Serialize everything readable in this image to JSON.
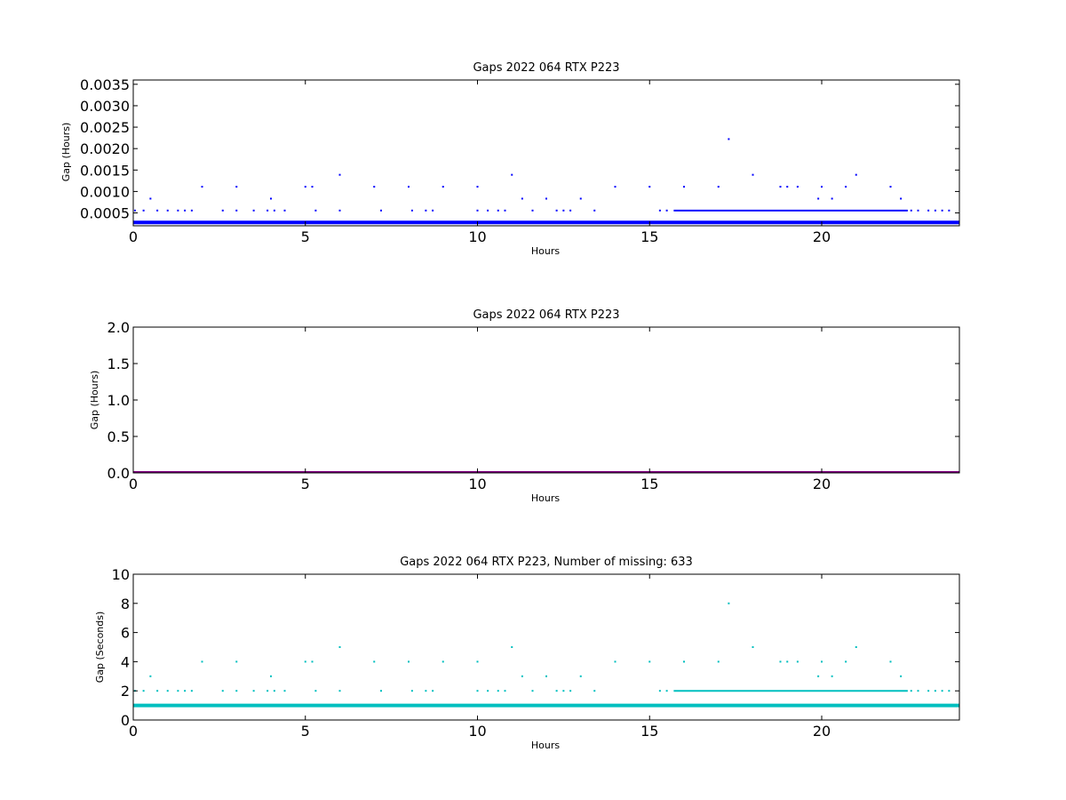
{
  "chart_data": [
    {
      "type": "scatter",
      "title": "Gaps 2022 064 RTX  P223",
      "xlabel": "Hours",
      "ylabel": "Gap (Hours)",
      "xlim": [
        0,
        24
      ],
      "ylim": [
        0.0002,
        0.0036
      ],
      "xticks": [
        0,
        5,
        10,
        15,
        20
      ],
      "yticks": [
        0.0005,
        0.001,
        0.0015,
        0.002,
        0.0025,
        0.003,
        0.0035
      ],
      "ytick_labels": [
        "0.0005",
        "0.0010",
        "0.0015",
        "0.0020",
        "0.0025",
        "0.0030",
        "0.0035"
      ],
      "xtick_labels": [
        "0",
        "5",
        "10",
        "15",
        "20"
      ],
      "color": "#0000ff",
      "baseline": {
        "y": 0.000278,
        "x_range": [
          0,
          24
        ]
      },
      "dense_runs": [
        {
          "y": 0.000556,
          "x_range": [
            15.7,
            22.5
          ]
        }
      ],
      "points": [
        [
          0.05,
          0.000556
        ],
        [
          0.3,
          0.000556
        ],
        [
          0.5,
          0.000833
        ],
        [
          0.7,
          0.000556
        ],
        [
          1.0,
          0.000556
        ],
        [
          1.3,
          0.000556
        ],
        [
          1.5,
          0.000556
        ],
        [
          1.7,
          0.000556
        ],
        [
          2.0,
          0.001111
        ],
        [
          2.6,
          0.000556
        ],
        [
          3.0,
          0.001111
        ],
        [
          3.0,
          0.000556
        ],
        [
          3.5,
          0.000556
        ],
        [
          4.0,
          0.000833
        ],
        [
          3.9,
          0.000556
        ],
        [
          4.1,
          0.000556
        ],
        [
          4.4,
          0.000556
        ],
        [
          5.0,
          0.001111
        ],
        [
          5.2,
          0.001111
        ],
        [
          5.3,
          0.000556
        ],
        [
          6.0,
          0.001389
        ],
        [
          6.0,
          0.000556
        ],
        [
          7.0,
          0.001111
        ],
        [
          7.2,
          0.000556
        ],
        [
          8.0,
          0.001111
        ],
        [
          8.1,
          0.000556
        ],
        [
          8.5,
          0.000556
        ],
        [
          8.7,
          0.000556
        ],
        [
          9.0,
          0.001111
        ],
        [
          10.0,
          0.001111
        ],
        [
          10.0,
          0.000556
        ],
        [
          10.3,
          0.000556
        ],
        [
          10.6,
          0.000556
        ],
        [
          10.8,
          0.000556
        ],
        [
          11.0,
          0.001389
        ],
        [
          11.3,
          0.000833
        ],
        [
          11.6,
          0.000556
        ],
        [
          12.0,
          0.000833
        ],
        [
          12.3,
          0.000556
        ],
        [
          12.5,
          0.000556
        ],
        [
          12.7,
          0.000556
        ],
        [
          13.0,
          0.000833
        ],
        [
          13.4,
          0.000556
        ],
        [
          14.0,
          0.001111
        ],
        [
          15.0,
          0.001111
        ],
        [
          15.3,
          0.000556
        ],
        [
          15.5,
          0.000556
        ],
        [
          16.0,
          0.001111
        ],
        [
          17.0,
          0.001111
        ],
        [
          17.3,
          0.002222
        ],
        [
          18.0,
          0.001389
        ],
        [
          18.8,
          0.001111
        ],
        [
          19.0,
          0.001111
        ],
        [
          19.3,
          0.001111
        ],
        [
          19.9,
          0.000833
        ],
        [
          20.0,
          0.001111
        ],
        [
          20.3,
          0.000833
        ],
        [
          20.7,
          0.001111
        ],
        [
          21.0,
          0.001389
        ],
        [
          22.0,
          0.001111
        ],
        [
          22.3,
          0.000833
        ],
        [
          22.6,
          0.000556
        ],
        [
          22.8,
          0.000556
        ],
        [
          23.1,
          0.000556
        ],
        [
          23.3,
          0.000556
        ],
        [
          23.5,
          0.000556
        ],
        [
          23.7,
          0.000556
        ]
      ]
    },
    {
      "type": "line",
      "title": "Gaps 2022 064 RTX  P223",
      "xlabel": "Hours",
      "ylabel": "Gap (Hours)",
      "xlim": [
        0,
        24
      ],
      "ylim": [
        0,
        2.0
      ],
      "xticks": [
        0,
        5,
        10,
        15,
        20
      ],
      "yticks": [
        0.0,
        0.5,
        1.0,
        1.5,
        2.0
      ],
      "ytick_labels": [
        "0.0",
        "0.5",
        "1.0",
        "1.5",
        "2.0"
      ],
      "xtick_labels": [
        "0",
        "5",
        "10",
        "15",
        "20"
      ],
      "color": "#800080",
      "baseline": {
        "y": 0.0,
        "x_range": [
          0,
          24
        ]
      },
      "dense_runs": [],
      "points": []
    },
    {
      "type": "scatter",
      "title": "Gaps 2022 064 RTX  P223, Number of missing: 633",
      "xlabel": "Hours",
      "ylabel": "Gap (Seconds)",
      "xlim": [
        0,
        24
      ],
      "ylim": [
        0,
        10
      ],
      "xticks": [
        0,
        5,
        10,
        15,
        20
      ],
      "yticks": [
        0,
        2,
        4,
        6,
        8,
        10
      ],
      "ytick_labels": [
        "0",
        "2",
        "4",
        "6",
        "8",
        "10"
      ],
      "xtick_labels": [
        "0",
        "5",
        "10",
        "15",
        "20"
      ],
      "color": "#00bfbf",
      "baseline": {
        "y": 1,
        "x_range": [
          0,
          24
        ]
      },
      "dense_runs": [
        {
          "y": 2,
          "x_range": [
            15.7,
            22.5
          ]
        }
      ],
      "points": [
        [
          0.05,
          2
        ],
        [
          0.3,
          2
        ],
        [
          0.5,
          3
        ],
        [
          0.7,
          2
        ],
        [
          1.0,
          2
        ],
        [
          1.3,
          2
        ],
        [
          1.5,
          2
        ],
        [
          1.7,
          2
        ],
        [
          2.0,
          4
        ],
        [
          2.6,
          2
        ],
        [
          3.0,
          4
        ],
        [
          3.0,
          2
        ],
        [
          3.5,
          2
        ],
        [
          4.0,
          3
        ],
        [
          3.9,
          2
        ],
        [
          4.1,
          2
        ],
        [
          4.4,
          2
        ],
        [
          5.0,
          4
        ],
        [
          5.2,
          4
        ],
        [
          5.3,
          2
        ],
        [
          6.0,
          5
        ],
        [
          6.0,
          2
        ],
        [
          7.0,
          4
        ],
        [
          7.2,
          2
        ],
        [
          8.0,
          4
        ],
        [
          8.1,
          2
        ],
        [
          8.5,
          2
        ],
        [
          8.7,
          2
        ],
        [
          9.0,
          4
        ],
        [
          10.0,
          4
        ],
        [
          10.0,
          2
        ],
        [
          10.3,
          2
        ],
        [
          10.6,
          2
        ],
        [
          10.8,
          2
        ],
        [
          11.0,
          5
        ],
        [
          11.3,
          3
        ],
        [
          11.6,
          2
        ],
        [
          12.0,
          3
        ],
        [
          12.3,
          2
        ],
        [
          12.5,
          2
        ],
        [
          12.7,
          2
        ],
        [
          13.0,
          3
        ],
        [
          13.4,
          2
        ],
        [
          14.0,
          4
        ],
        [
          15.0,
          4
        ],
        [
          15.3,
          2
        ],
        [
          15.5,
          2
        ],
        [
          16.0,
          4
        ],
        [
          17.0,
          4
        ],
        [
          17.3,
          8
        ],
        [
          18.0,
          5
        ],
        [
          18.8,
          4
        ],
        [
          19.0,
          4
        ],
        [
          19.3,
          4
        ],
        [
          19.9,
          3
        ],
        [
          20.0,
          4
        ],
        [
          20.3,
          3
        ],
        [
          20.7,
          4
        ],
        [
          21.0,
          5
        ],
        [
          22.0,
          4
        ],
        [
          22.3,
          3
        ],
        [
          22.6,
          2
        ],
        [
          22.8,
          2
        ],
        [
          23.1,
          2
        ],
        [
          23.3,
          2
        ],
        [
          23.5,
          2
        ],
        [
          23.7,
          2
        ]
      ]
    }
  ]
}
